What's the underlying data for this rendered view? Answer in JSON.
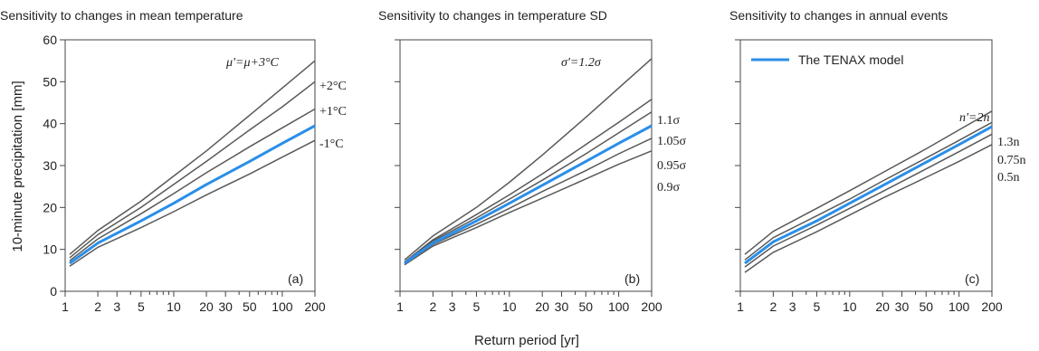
{
  "chart_data": [
    {
      "type": "line",
      "title": "Sensitivity to changes in mean temperature",
      "panel_label": "(a)",
      "ylabel": "10-minute precipitation [mm]",
      "xlabel": "",
      "xscale": "log",
      "xlim": [
        1,
        200
      ],
      "ylim": [
        0,
        60
      ],
      "x_ticks": [
        1,
        2,
        3,
        5,
        10,
        20,
        30,
        50,
        100,
        200
      ],
      "x_tick_labels": [
        "1",
        "2",
        "3",
        "5",
        "10",
        "20",
        "30",
        "50",
        "100",
        "200"
      ],
      "y_ticks": [
        0,
        10,
        20,
        30,
        40,
        50,
        60
      ],
      "y_tick_labels": [
        "0",
        "10",
        "20",
        "30",
        "40",
        "50",
        "60"
      ],
      "series": [
        {
          "name": "μ'=μ+3°C",
          "color": "#595959",
          "x": [
            1.1,
            2,
            5,
            10,
            20,
            50,
            100,
            200
          ],
          "y": [
            8.8,
            14.5,
            21.5,
            27.5,
            33.5,
            42.0,
            48.5,
            55.0
          ]
        },
        {
          "name": "+2°C",
          "color": "#595959",
          "x": [
            1.1,
            2,
            5,
            10,
            20,
            50,
            100,
            200
          ],
          "y": [
            8.0,
            13.5,
            20.0,
            25.5,
            31.0,
            38.5,
            44.0,
            50.0
          ]
        },
        {
          "name": "+1°C",
          "color": "#595959",
          "x": [
            1.1,
            2,
            5,
            10,
            20,
            50,
            100,
            200
          ],
          "y": [
            7.3,
            12.5,
            18.5,
            23.3,
            28.3,
            34.5,
            39.0,
            43.5
          ]
        },
        {
          "name": "",
          "color": "#2a8ee8",
          "x": [
            1.1,
            2,
            5,
            10,
            20,
            50,
            100,
            200
          ],
          "y": [
            6.7,
            11.5,
            16.8,
            21.0,
            25.5,
            31.0,
            35.3,
            39.5
          ]
        },
        {
          "name": "-1°C",
          "color": "#595959",
          "x": [
            1.1,
            2,
            5,
            10,
            20,
            50,
            100,
            200
          ],
          "y": [
            6.0,
            10.5,
            15.2,
            19.0,
            23.0,
            28.0,
            32.0,
            36.0
          ]
        }
      ],
      "annotations": [
        "μ'=μ+3°C",
        "+2°C",
        "+1°C",
        "-1°C"
      ]
    },
    {
      "type": "line",
      "title": "Sensitivity to changes in temperature SD",
      "panel_label": "(b)",
      "xlabel": "Return period [yr]",
      "ylabel": "",
      "xscale": "log",
      "xlim": [
        1,
        200
      ],
      "ylim": [
        0,
        60
      ],
      "x_ticks": [
        1,
        2,
        3,
        5,
        10,
        20,
        30,
        50,
        100,
        200
      ],
      "x_tick_labels": [
        "1",
        "2",
        "3",
        "5",
        "10",
        "20",
        "30",
        "50",
        "100",
        "200"
      ],
      "series": [
        {
          "name": "σ'=1.2σ",
          "color": "#595959",
          "x": [
            1.1,
            2,
            5,
            10,
            20,
            50,
            100,
            200
          ],
          "y": [
            7.5,
            13.2,
            20.0,
            26.0,
            32.5,
            41.5,
            48.5,
            55.5
          ]
        },
        {
          "name": "1.1σ",
          "color": "#595959",
          "x": [
            1.1,
            2,
            5,
            10,
            20,
            50,
            100,
            200
          ],
          "y": [
            7.0,
            12.3,
            18.3,
            23.0,
            28.0,
            35.0,
            40.3,
            45.8
          ]
        },
        {
          "name": "1.05σ",
          "color": "#595959",
          "x": [
            1.1,
            2,
            5,
            10,
            20,
            50,
            100,
            200
          ],
          "y": [
            6.8,
            12.0,
            17.5,
            22.0,
            26.5,
            32.8,
            37.8,
            42.8
          ]
        },
        {
          "name": "",
          "color": "#2a8ee8",
          "x": [
            1.1,
            2,
            5,
            10,
            20,
            50,
            100,
            200
          ],
          "y": [
            6.7,
            11.5,
            16.8,
            21.0,
            25.3,
            31.0,
            35.3,
            39.5
          ]
        },
        {
          "name": "0.95σ",
          "color": "#595959",
          "x": [
            1.1,
            2,
            5,
            10,
            20,
            50,
            100,
            200
          ],
          "y": [
            6.5,
            11.2,
            16.0,
            19.8,
            23.8,
            28.8,
            32.8,
            36.5
          ]
        },
        {
          "name": "0.9σ",
          "color": "#595959",
          "x": [
            1.1,
            2,
            5,
            10,
            20,
            50,
            100,
            200
          ],
          "y": [
            6.3,
            10.8,
            15.2,
            18.8,
            22.2,
            26.8,
            30.3,
            33.5
          ]
        }
      ],
      "annotations": [
        "σ'=1.2σ",
        "1.1σ",
        "1.05σ",
        "0.95σ",
        "0.9σ"
      ]
    },
    {
      "type": "line",
      "title": "Sensitivity to changes in annual events",
      "panel_label": "(c)",
      "xlabel": "",
      "ylabel": "",
      "xscale": "log",
      "xlim": [
        1,
        200
      ],
      "ylim": [
        0,
        60
      ],
      "x_ticks": [
        1,
        2,
        3,
        5,
        10,
        20,
        30,
        50,
        100,
        200
      ],
      "x_tick_labels": [
        "1",
        "2",
        "3",
        "5",
        "10",
        "20",
        "30",
        "50",
        "100",
        "200"
      ],
      "legend": {
        "position": "top-left",
        "entries": [
          "The TENAX model"
        ]
      },
      "series": [
        {
          "name": "n'=2n",
          "color": "#595959",
          "x": [
            1.1,
            2,
            5,
            10,
            20,
            50,
            100,
            200
          ],
          "y": [
            8.8,
            14.3,
            19.8,
            24.0,
            28.3,
            34.0,
            38.5,
            43.0
          ]
        },
        {
          "name": "1.3n",
          "color": "#595959",
          "x": [
            1.1,
            2,
            5,
            10,
            20,
            50,
            100,
            200
          ],
          "y": [
            7.5,
            12.8,
            18.0,
            22.0,
            26.3,
            31.8,
            36.0,
            40.3
          ]
        },
        {
          "name": "The TENAX model",
          "color": "#2a8ee8",
          "x": [
            1.1,
            2,
            5,
            10,
            20,
            50,
            100,
            200
          ],
          "y": [
            6.7,
            11.8,
            16.8,
            21.0,
            25.2,
            30.8,
            35.0,
            39.3
          ]
        },
        {
          "name": "0.75n",
          "color": "#595959",
          "x": [
            1.1,
            2,
            5,
            10,
            20,
            50,
            100,
            200
          ],
          "y": [
            5.8,
            10.8,
            15.8,
            19.8,
            23.8,
            29.2,
            33.3,
            37.5
          ]
        },
        {
          "name": "0.5n",
          "color": "#595959",
          "x": [
            1.1,
            2,
            5,
            10,
            20,
            50,
            100,
            200
          ],
          "y": [
            4.5,
            9.3,
            14.2,
            18.2,
            22.2,
            27.2,
            31.0,
            35.0
          ]
        }
      ],
      "annotations": [
        "n'=2n",
        "1.3n",
        "0.75n",
        "0.5n"
      ]
    }
  ]
}
